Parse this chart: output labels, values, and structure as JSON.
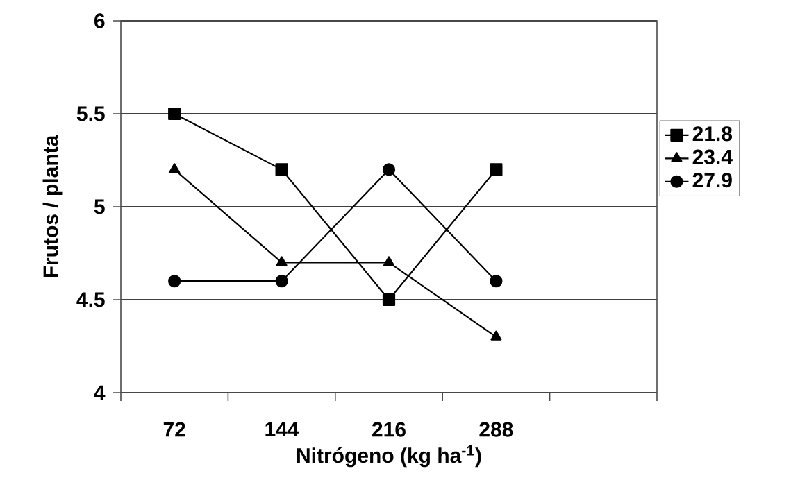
{
  "chart_data": {
    "type": "line",
    "xlabel": "Nitrógeno (kg ha$^{-1}$)",
    "ylabel": "Frutos / planta",
    "categories": [
      "72",
      "144",
      "216",
      "288",
      null
    ],
    "series": [
      {
        "name": "21.8",
        "color": "#000000",
        "marker": "square",
        "values": [
          5.5,
          5.2,
          4.5,
          5.2,
          null
        ]
      },
      {
        "name": "23.4",
        "color": "#000000",
        "marker": "triangle",
        "values": [
          5.2,
          4.7,
          4.7,
          4.3,
          null
        ]
      },
      {
        "name": "27.9",
        "color": "#000000",
        "marker": "circle",
        "values": [
          4.6,
          4.6,
          5.2,
          4.6,
          null
        ]
      }
    ],
    "ylim": [
      4,
      6
    ],
    "yticks": [
      4,
      4.5,
      5,
      5.5,
      6
    ],
    "grid": "y",
    "legend": "right",
    "line_style": "solid"
  }
}
